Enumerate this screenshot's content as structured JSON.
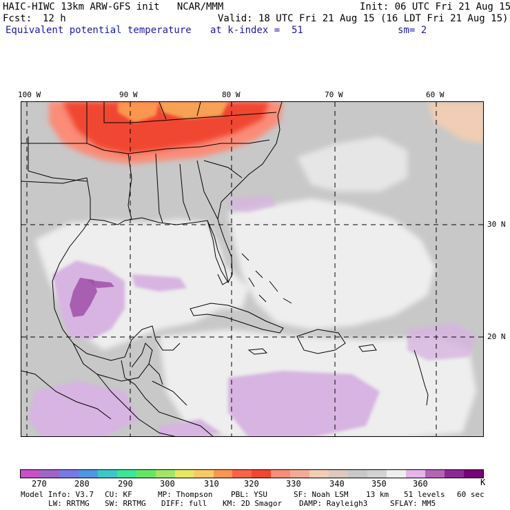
{
  "header": {
    "model_line": "HAIC-HIWC 13km ARW-GFS init   NCAR/MMM",
    "init": "Init: 06 UTC Fri 21 Aug 15",
    "fcst_label": "Fcst:",
    "fcst_value": "12 h",
    "valid": "Valid: 18 UTC Fri 21 Aug 15 (16 LDT Fri 21 Aug 15)",
    "field_name": "Equivalent potential temperature",
    "level": "at k-index =  51",
    "smoothing": "sm= 2"
  },
  "axes": {
    "lon_labels": [
      "100 W",
      "90 W",
      "80 W",
      "70 W",
      "60 W"
    ],
    "lat_labels": [
      "30 N",
      "20 N"
    ]
  },
  "colorbar": {
    "colors": [
      "#c850c8",
      "#a064c8",
      "#7878e6",
      "#5096e6",
      "#3cc8c8",
      "#3ce696",
      "#64e664",
      "#a0e664",
      "#e6e664",
      "#fac864",
      "#fa9650",
      "#fa6446",
      "#f04632",
      "#fa8c78",
      "#f5aa96",
      "#f0cdb4",
      "#dcc8be",
      "#c8c8c8",
      "#d2d2d2",
      "#eeeeee",
      "#e6b4e6",
      "#b464b4",
      "#8c2896",
      "#780078"
    ],
    "labels": [
      "270",
      "280",
      "290",
      "300",
      "310",
      "320",
      "330",
      "340",
      "350",
      "360"
    ],
    "unit": "K"
  },
  "footer": {
    "line1": [
      "Model Info: V3.7",
      "CU: KF",
      "MP: Thompson",
      "PBL: YSU",
      "SF: Noah LSM",
      "13 km",
      "51 levels",
      "60 sec"
    ],
    "line2": [
      "LW: RRTMG",
      "SW: RRTMG",
      "DIFF: full",
      "KM: 2D Smagor",
      "DAMP: Rayleigh3",
      "SFLAY: MM5"
    ]
  },
  "colors": {
    "land_gray": "#c8c8c8",
    "ocean_light": "#eeeeee",
    "hot_red": "#f04632",
    "warm_orange": "#fa8c78",
    "purple": "#d7b4e1",
    "dark_purple": "#a050a8",
    "title_blue": "#1a1aa8"
  }
}
